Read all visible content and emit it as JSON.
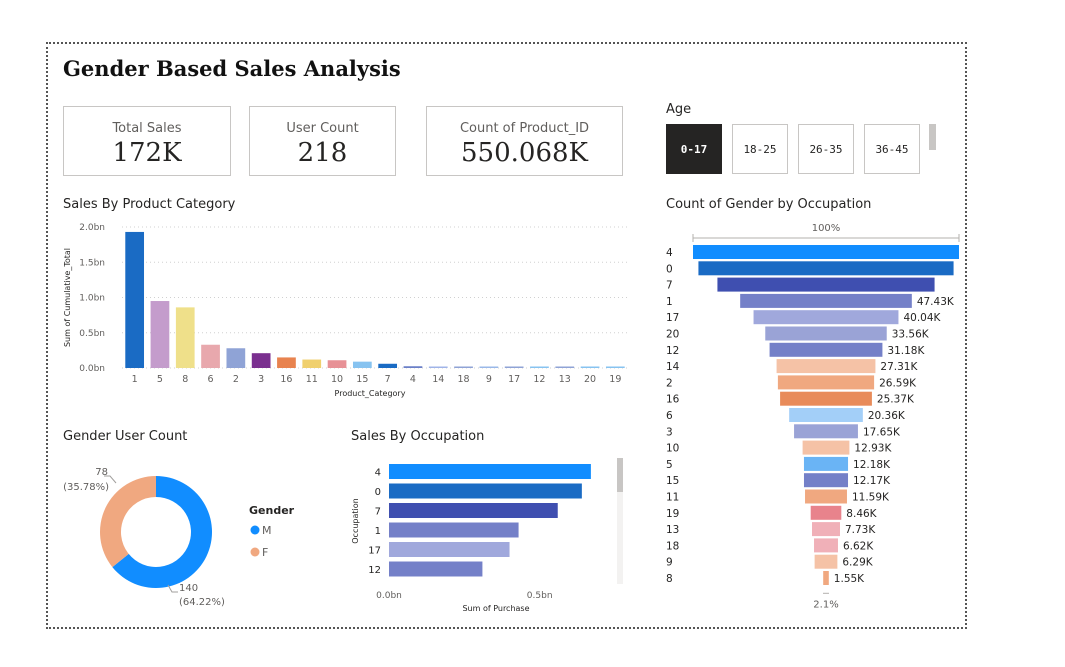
{
  "report": {
    "title": "Gender Based Sales Analysis"
  },
  "cards": [
    {
      "label": "Total Sales",
      "value": "172K"
    },
    {
      "label": "User Count",
      "value": "218"
    },
    {
      "label": "Count of Product_ID",
      "value": "550.068K"
    }
  ],
  "age_slicer": {
    "title": "Age",
    "options": [
      "0-17",
      "18-25",
      "26-35",
      "36-45"
    ],
    "selected": "0-17"
  },
  "chart_titles": {
    "product": "Sales By Product Category",
    "occupation_funnel": "Count of Gender by Occupation",
    "gender": "Gender User Count",
    "occupation_bar": "Sales By Occupation"
  },
  "chart_data": [
    {
      "id": "product",
      "type": "bar",
      "title": "Sales By Product Category",
      "xlabel": "Product_Category",
      "ylabel": "Sum of Cumulative_Total",
      "ylim": [
        0,
        2.0
      ],
      "yticks": [
        "0.0bn",
        "0.5bn",
        "1.0bn",
        "1.5bn",
        "2.0bn"
      ],
      "categories": [
        "1",
        "5",
        "8",
        "6",
        "2",
        "3",
        "16",
        "11",
        "10",
        "15",
        "7",
        "4",
        "14",
        "18",
        "9",
        "17",
        "12",
        "13",
        "20",
        "19"
      ],
      "values": [
        1.93,
        0.95,
        0.86,
        0.33,
        0.28,
        0.21,
        0.15,
        0.12,
        0.11,
        0.09,
        0.06,
        0.025,
        0.02,
        0.015,
        0.012,
        0.01,
        0.008,
        0.007,
        0.006,
        0.005
      ],
      "colors": [
        "#1a6bc4",
        "#c49ccc",
        "#efe08a",
        "#e8a8ad",
        "#8fa3d6",
        "#7a2f8f",
        "#e8834f",
        "#f0d06e",
        "#e79196",
        "#87c3f0",
        "#1a6bc4",
        "#6b80c8",
        "#a0b4e8",
        "#8fa3d6",
        "#9ab8e8",
        "#8fa3d6",
        "#87c3f0",
        "#8fa3d6",
        "#87c3f0",
        "#87c3f0"
      ],
      "grid": true
    },
    {
      "id": "occupation_funnel",
      "type": "bar",
      "title": "Count of Gender by Occupation",
      "top_label": "100%",
      "bottom_label": "2.1%",
      "categories": [
        "4",
        "0",
        "7",
        "1",
        "17",
        "20",
        "12",
        "14",
        "2",
        "16",
        "6",
        "3",
        "10",
        "5",
        "15",
        "11",
        "19",
        "13",
        "18",
        "9",
        "8"
      ],
      "values": [
        null,
        null,
        null,
        47.43,
        40.04,
        33.56,
        31.18,
        27.31,
        26.59,
        25.37,
        20.36,
        17.65,
        12.93,
        12.18,
        12.17,
        11.59,
        8.46,
        7.73,
        6.62,
        6.29,
        1.55
      ],
      "value_labels": [
        "",
        "",
        "",
        "47.43K",
        "40.04K",
        "33.56K",
        "31.18K",
        "27.31K",
        "26.59K",
        "25.37K",
        "20.36K",
        "17.65K",
        "12.93K",
        "12.18K",
        "12.17K",
        "11.59K",
        "8.46K",
        "7.73K",
        "6.62K",
        "6.29K",
        "1.55K"
      ],
      "colors": [
        "#118dff",
        "#1a6bc4",
        "#3f4fb0",
        "#7480c8",
        "#a0a8dc",
        "#9aa3d6",
        "#7480c8",
        "#f5c2a6",
        "#f0a880",
        "#e88b5a",
        "#a3cff8",
        "#9aa3d6",
        "#f5c2a6",
        "#6ab4f5",
        "#7480c8",
        "#f0a880",
        "#e8838c",
        "#f0b0b8",
        "#f0b0b8",
        "#f5c2a6",
        "#f0a880"
      ],
      "max_value": 73.5
    },
    {
      "id": "gender",
      "type": "pie",
      "title": "Gender User Count",
      "legend_title": "Gender",
      "legend_position": "right",
      "labels": [
        "M",
        "F"
      ],
      "values": [
        140,
        78
      ],
      "slice_labels": [
        "140\n(64.22%)",
        "78\n(35.78%)"
      ],
      "colors": [
        "#118dff",
        "#f0a880"
      ]
    },
    {
      "id": "occupation_bar",
      "type": "bar",
      "orientation": "horizontal",
      "title": "Sales By Occupation",
      "xlabel": "Sum of Purchase",
      "ylabel": "Occupation",
      "xticks": [
        "0.0bn",
        "0.5bn"
      ],
      "xlim": [
        0,
        0.75
      ],
      "categories": [
        "4",
        "0",
        "7",
        "1",
        "17",
        "12"
      ],
      "values": [
        0.67,
        0.64,
        0.56,
        0.43,
        0.4,
        0.31
      ],
      "colors": [
        "#118dff",
        "#1a6bc4",
        "#3f4fb0",
        "#7480c8",
        "#a0a8dc",
        "#7480c8"
      ]
    }
  ]
}
